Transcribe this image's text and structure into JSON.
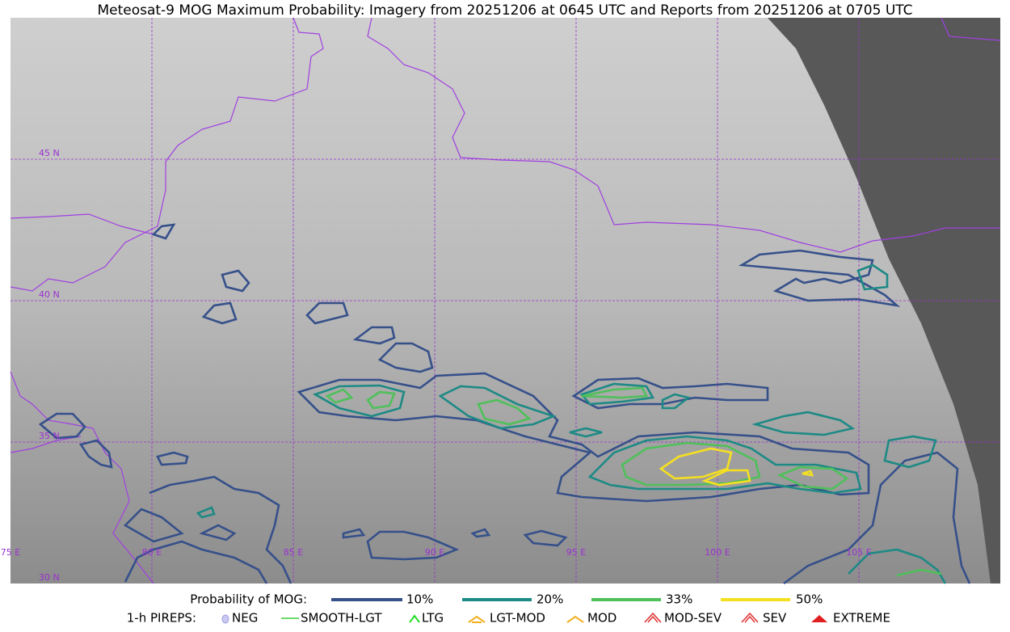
{
  "title": "Meteosat-9 MOG Maximum Probability: Imagery from 20251206 at 0645 UTC and Reports from 20251206 at 0705 UTC",
  "map": {
    "latitude_labels": [
      "45 N",
      "40 N",
      "35 N",
      "30 N"
    ],
    "longitude_labels": [
      "75 E",
      "80 E",
      "85 E",
      "90 E",
      "95 E",
      "100 E",
      "105 E"
    ]
  },
  "legend": {
    "probability_title": "Probability of MOG:",
    "probability_levels": [
      "10%",
      "20%",
      "33%",
      "50%"
    ],
    "pireps_title": "1-h PIREPS:",
    "pirep_types": [
      "NEG",
      "SMOOTH-LGT",
      "LTG",
      "LGT-MOD",
      "MOD",
      "MOD-SEV",
      "SEV",
      "EXTREME"
    ]
  }
}
